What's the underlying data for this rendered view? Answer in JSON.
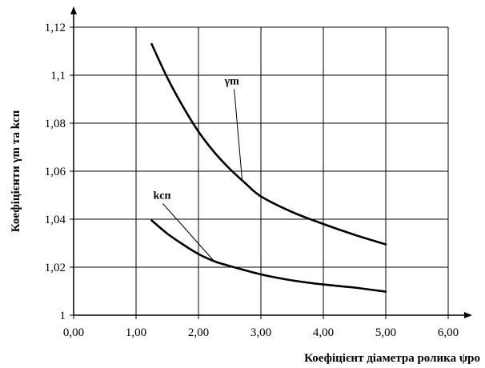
{
  "chart_data": {
    "type": "line",
    "xlabel": "Коефіцієнт діаметра ролика ψро",
    "ylabel": "Коефіцієнти γm та kсп",
    "xlim": [
      0,
      6
    ],
    "ylim": [
      1,
      1.12
    ],
    "x_ticks": [
      0,
      1,
      2,
      3,
      4,
      5,
      6
    ],
    "x_tick_labels": [
      "0,00",
      "1,00",
      "2,00",
      "3,00",
      "4,00",
      "5,00",
      "6,00"
    ],
    "y_ticks": [
      1,
      1.02,
      1.04,
      1.06,
      1.08,
      1.1,
      1.12
    ],
    "y_tick_labels": [
      "1",
      "1,02",
      "1,04",
      "1,06",
      "1,08",
      "1,1",
      "1,12"
    ],
    "grid": true,
    "series": [
      {
        "name": "γm",
        "x": [
          1.25,
          1.5,
          1.75,
          2.0,
          2.25,
          2.5,
          2.75,
          3.0,
          3.5,
          4.0,
          4.5,
          5.0
        ],
        "values": [
          1.113,
          1.099,
          1.087,
          1.0765,
          1.068,
          1.061,
          1.055,
          1.0495,
          1.043,
          1.038,
          1.0335,
          1.0295
        ]
      },
      {
        "name": "kсп",
        "x": [
          1.25,
          1.5,
          1.75,
          2.0,
          2.25,
          2.5,
          3.0,
          3.5,
          4.0,
          4.5,
          5.0
        ],
        "values": [
          1.0395,
          1.034,
          1.0295,
          1.0255,
          1.0225,
          1.0205,
          1.017,
          1.0145,
          1.0128,
          1.0115,
          1.0098
        ]
      }
    ],
    "annotations": [
      {
        "text": "γm",
        "series": "γm",
        "at_x": 2.7
      },
      {
        "text": "kсп",
        "series": "kсп",
        "at_x": 2.25
      }
    ]
  }
}
